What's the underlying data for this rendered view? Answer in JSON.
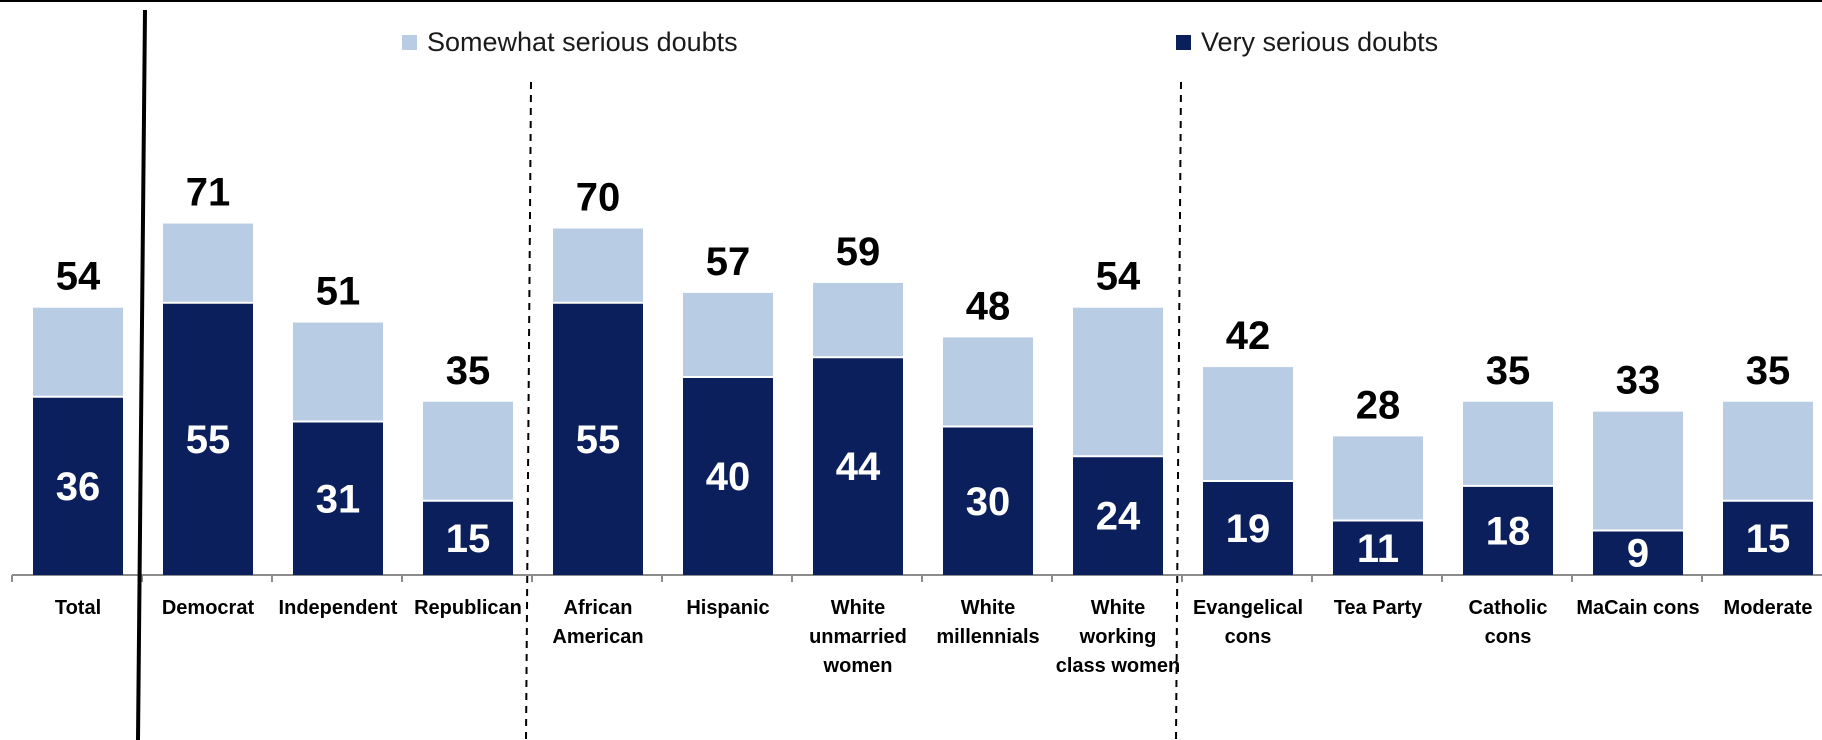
{
  "chart_data": {
    "type": "bar",
    "stacked": true,
    "categories": [
      "Total",
      "Democrat",
      "Independent",
      "Republican",
      "African American",
      "Hispanic",
      "White unmarried women",
      "White millennials",
      "White working class women",
      "Evangelical cons",
      "Tea Party",
      "Catholic cons",
      "MaCain cons",
      "Moderate"
    ],
    "category_lines": [
      [
        "Total"
      ],
      [
        "Democrat"
      ],
      [
        "Independent"
      ],
      [
        "Republican"
      ],
      [
        "African",
        "American"
      ],
      [
        "Hispanic"
      ],
      [
        "White",
        "unmarried",
        "women"
      ],
      [
        "White",
        "millennials"
      ],
      [
        "White",
        "working",
        "class women"
      ],
      [
        "Evangelical",
        "cons"
      ],
      [
        "Tea Party"
      ],
      [
        "Catholic",
        "cons"
      ],
      [
        "MaCain cons"
      ],
      [
        "Moderate"
      ]
    ],
    "series": [
      {
        "name": "Very serious doubts",
        "color": "#0b1f5c",
        "values": [
          36,
          55,
          31,
          15,
          55,
          40,
          44,
          30,
          24,
          19,
          11,
          18,
          9,
          15
        ]
      },
      {
        "name": "Somewhat serious doubts",
        "color": "#b8cce4",
        "values": [
          18,
          16,
          20,
          20,
          15,
          17,
          15,
          18,
          30,
          23,
          17,
          17,
          24,
          20
        ]
      }
    ],
    "totals": [
      54,
      71,
      51,
      35,
      70,
      57,
      59,
      48,
      54,
      42,
      28,
      35,
      33,
      35
    ],
    "group_separators_after": [
      0,
      3,
      8
    ],
    "legend_position": "top",
    "grid": false,
    "ylim": [
      0,
      100
    ]
  }
}
